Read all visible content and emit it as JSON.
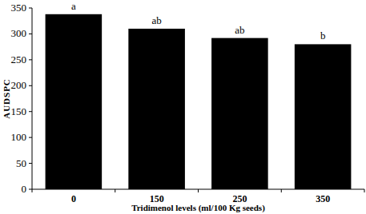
{
  "chart_data": {
    "type": "bar",
    "x_label": "Tridimenol levels (ml/100 Kg seeds)",
    "y_label": "AUDSPC",
    "categories": [
      "0",
      "150",
      "250",
      "350"
    ],
    "values": [
      338,
      310,
      292,
      280
    ],
    "annotations": [
      "a",
      "ab",
      "ab",
      "b"
    ],
    "color": "#000000",
    "ylim": [
      0,
      350
    ],
    "yticks": [
      0,
      50,
      100,
      150,
      200,
      250,
      300,
      350
    ],
    "grid": false
  }
}
